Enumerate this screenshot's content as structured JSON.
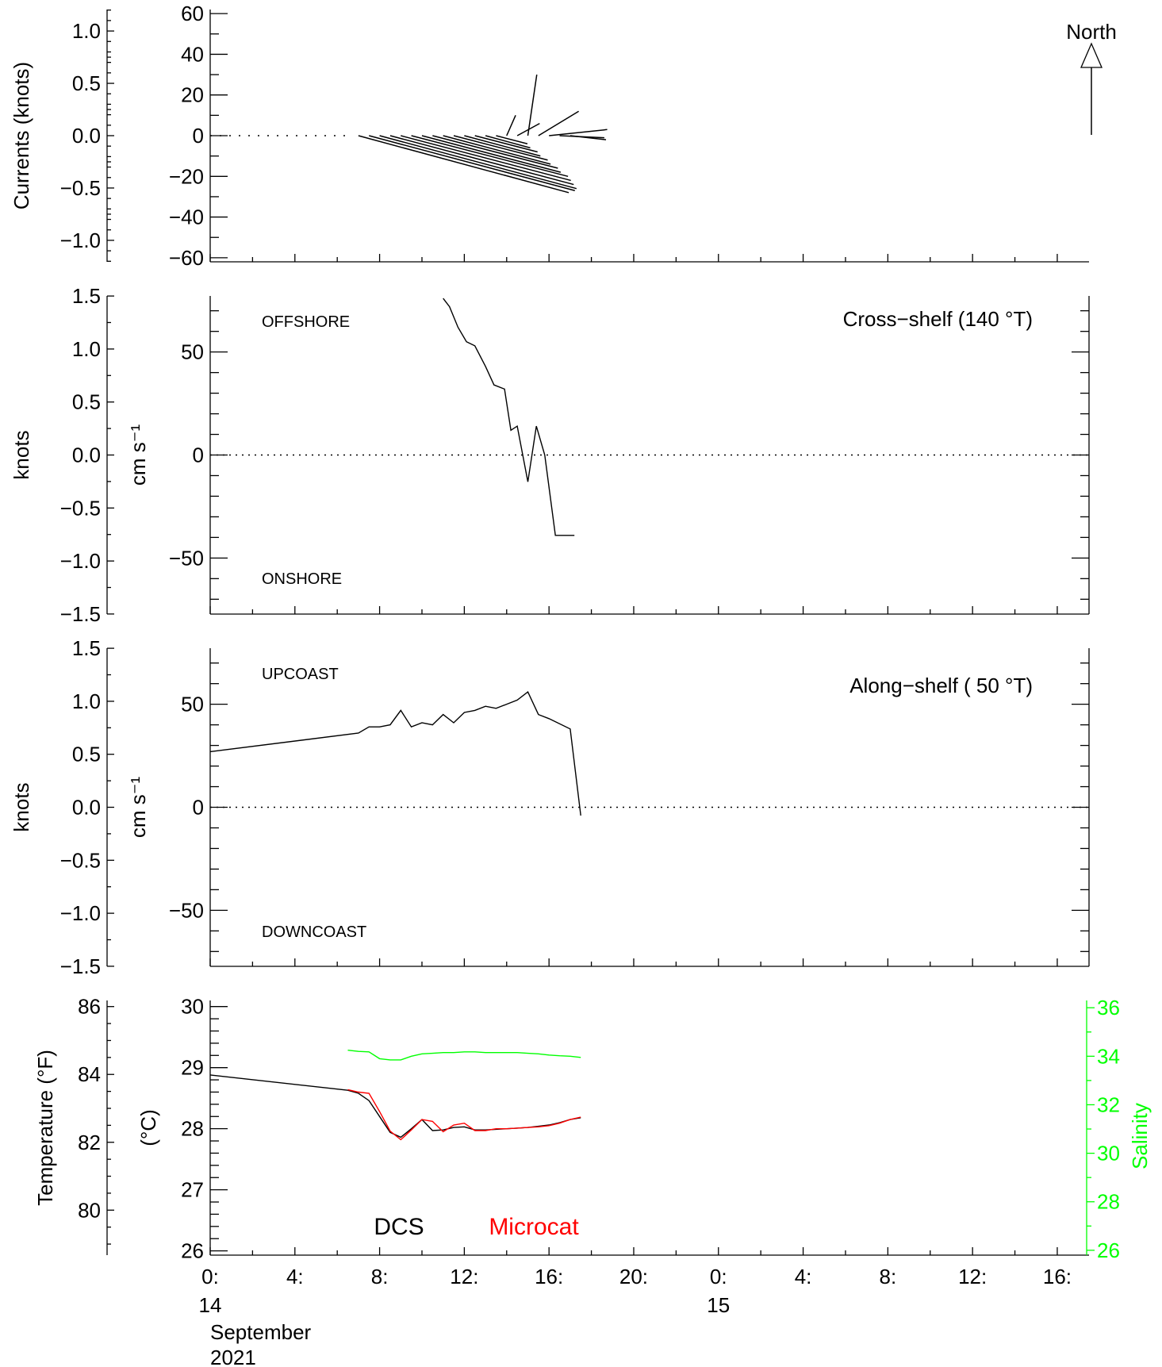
{
  "chart_data": [
    {
      "type": "stick",
      "panel": "currents",
      "ylabel": "Currents (knots)",
      "knots_ticks": [
        "1.0",
        "0.5",
        "0.0",
        "−0.5",
        "−1.0"
      ],
      "cms_ticks": [
        "60",
        "40",
        "20",
        "0",
        "−20",
        "−40",
        "−60"
      ],
      "ylim_cms": [
        -62,
        62
      ],
      "north_label": "North",
      "sticks": [
        {
          "t": 6.5,
          "u": 0,
          "v": 0
        },
        {
          "t": 7,
          "u": 47,
          "v": -28
        },
        {
          "t": 7.5,
          "u": 46,
          "v": -27
        },
        {
          "t": 8,
          "u": 44,
          "v": -26
        },
        {
          "t": 8.5,
          "u": 41,
          "v": -24
        },
        {
          "t": 9,
          "u": 38,
          "v": -22
        },
        {
          "t": 9.5,
          "u": 35,
          "v": -20
        },
        {
          "t": 10,
          "u": 31,
          "v": -18
        },
        {
          "t": 10.5,
          "u": 28,
          "v": -16
        },
        {
          "t": 11,
          "u": 24,
          "v": -14
        },
        {
          "t": 11.5,
          "u": 21,
          "v": -12
        },
        {
          "t": 12,
          "u": 17,
          "v": -10
        },
        {
          "t": 12.5,
          "u": 14,
          "v": -8
        },
        {
          "t": 13,
          "u": 10,
          "v": -6
        },
        {
          "t": 13.5,
          "u": 7,
          "v": -4
        },
        {
          "t": 14,
          "u": 2,
          "v": 10
        },
        {
          "t": 14.5,
          "u": 5,
          "v": 6
        },
        {
          "t": 15,
          "u": 2,
          "v": 30
        },
        {
          "t": 15.5,
          "u": 9,
          "v": 12
        },
        {
          "t": 16,
          "u": 13,
          "v": 3
        },
        {
          "t": 16.5,
          "u": 10,
          "v": -1
        },
        {
          "t": 17,
          "u": 8,
          "v": -2
        }
      ]
    },
    {
      "type": "line",
      "panel": "cross-shelf",
      "title": "Cross−shelf (140 °T)",
      "ylabel": "knots",
      "ylabel2": "cm s⁻¹",
      "knots_ticks": [
        "1.5",
        "1.0",
        "0.5",
        "0.0",
        "−0.5",
        "−1.0",
        "−1.5"
      ],
      "cms_ticks": [
        "50",
        "0",
        "−50"
      ],
      "ylim_cms": [
        -77.2,
        77.2
      ],
      "top_label": "OFFSHORE",
      "bottom_label": "ONSHORE",
      "x": [
        11.0,
        11.3,
        11.7,
        12.1,
        12.5,
        13.0,
        13.4,
        13.9,
        14.2,
        14.5,
        15.0,
        15.4,
        15.8,
        16.3,
        16.8,
        17.2
      ],
      "y": [
        76,
        72,
        62,
        55,
        53,
        43,
        34,
        32,
        12,
        14,
        -13,
        14,
        0,
        -39,
        -39,
        -39
      ]
    },
    {
      "type": "line",
      "panel": "along-shelf",
      "title": "Along−shelf ( 50 °T)",
      "ylabel": "knots",
      "ylabel2": "cm s⁻¹",
      "knots_ticks": [
        "1.5",
        "1.0",
        "0.5",
        "0.0",
        "−0.5",
        "−1.0",
        "−1.5"
      ],
      "cms_ticks": [
        "50",
        "0",
        "−50"
      ],
      "ylim_cms": [
        -77.2,
        77.2
      ],
      "top_label": "UPCOAST",
      "bottom_label": "DOWNCOAST",
      "x": [
        0.0,
        7.0,
        7.5,
        8.0,
        8.5,
        9.0,
        9.5,
        10.0,
        10.5,
        11.0,
        11.5,
        12.0,
        12.5,
        13.0,
        13.5,
        14.0,
        14.5,
        15.0,
        15.5,
        16.0,
        17.0,
        17.5
      ],
      "y": [
        27,
        36,
        39,
        39,
        40,
        47,
        39,
        41,
        40,
        45,
        41,
        46,
        47,
        49,
        48,
        50,
        52,
        56,
        45,
        43,
        38,
        -4
      ]
    },
    {
      "type": "line",
      "panel": "temperature",
      "ylabel": "Temperature (°F)",
      "ylabel2": "(°C)",
      "ylabel3": "Salinity",
      "f_ticks": [
        "86",
        "84",
        "82",
        "80"
      ],
      "c_ticks": [
        "30",
        "29",
        "28",
        "27",
        "26"
      ],
      "sal_ticks": [
        "36",
        "34",
        "32",
        "30",
        "28",
        "26"
      ],
      "ylim_c": [
        25.93,
        30.1
      ],
      "ylim_sal": [
        25.8,
        36.3
      ],
      "dcs_label": "DCS",
      "microcat_label": "Microcat",
      "colors": {
        "dcs": "#000000",
        "microcat": "#ff0000",
        "salinity": "#00ff00"
      },
      "series": [
        {
          "name": "DCS",
          "x": [
            0,
            6.5,
            7,
            7.5,
            8,
            8.5,
            9,
            9.5,
            10,
            10.5,
            11,
            11.5,
            12,
            12.5,
            13,
            13.5,
            14,
            14.5,
            15,
            15.5,
            16,
            16.5,
            17,
            17.5
          ],
          "y": [
            28.88,
            28.63,
            28.58,
            28.46,
            28.2,
            27.94,
            27.86,
            28.0,
            28.15,
            27.97,
            27.98,
            28.02,
            28.03,
            27.98,
            27.98,
            27.99,
            28.0,
            28.01,
            28.02,
            28.04,
            28.06,
            28.1,
            28.15,
            28.18
          ]
        },
        {
          "name": "Microcat",
          "x": [
            6.5,
            7,
            7.5,
            8,
            8.5,
            9,
            9.5,
            10,
            10.5,
            11,
            11.5,
            12,
            12.5,
            13,
            13.5,
            14,
            14.5,
            15,
            15.5,
            16,
            16.5,
            17,
            17.5
          ],
          "y": [
            28.64,
            28.6,
            28.58,
            28.28,
            27.96,
            27.82,
            27.98,
            28.15,
            28.12,
            27.95,
            28.06,
            28.09,
            27.97,
            27.97,
            28.0,
            28.0,
            28.01,
            28.02,
            28.03,
            28.05,
            28.09,
            28.15,
            28.19
          ]
        },
        {
          "name": "Salinity",
          "x": [
            6.5,
            7,
            7.5,
            8,
            8.5,
            9,
            9.5,
            10,
            10.5,
            11,
            11.5,
            12,
            12.5,
            13,
            13.5,
            14,
            14.5,
            15,
            15.5,
            16,
            16.5,
            17,
            17.5
          ],
          "y": [
            34.25,
            34.2,
            34.18,
            33.9,
            33.85,
            33.85,
            34.0,
            34.1,
            34.12,
            34.15,
            34.15,
            34.18,
            34.18,
            34.15,
            34.15,
            34.15,
            34.15,
            34.12,
            34.1,
            34.05,
            34.02,
            34.0,
            33.95
          ]
        }
      ]
    }
  ],
  "x_axis": {
    "range_hours": [
      0,
      41.5
    ],
    "ticks": [
      {
        "h": 0,
        "label": "0:"
      },
      {
        "h": 4,
        "label": "4:"
      },
      {
        "h": 8,
        "label": "8:"
      },
      {
        "h": 12,
        "label": "12:"
      },
      {
        "h": 16,
        "label": "16:"
      },
      {
        "h": 20,
        "label": "20:"
      },
      {
        "h": 24,
        "label": "0:"
      },
      {
        "h": 28,
        "label": "4:"
      },
      {
        "h": 32,
        "label": "8:"
      },
      {
        "h": 36,
        "label": "12:"
      },
      {
        "h": 40,
        "label": "16:"
      }
    ],
    "day_labels": [
      {
        "h": 0,
        "label": "14"
      },
      {
        "h": 24,
        "label": "15"
      }
    ],
    "month_label": "September",
    "year_label": "2021"
  }
}
